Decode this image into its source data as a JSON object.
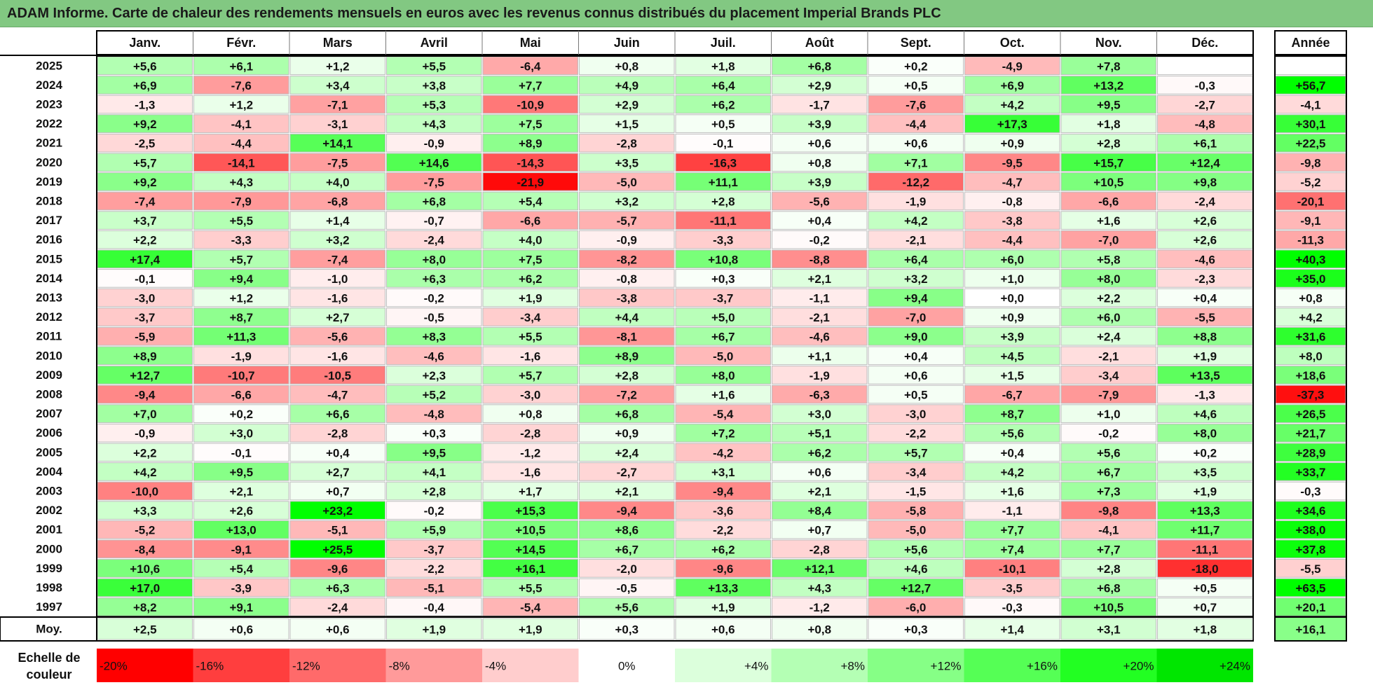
{
  "title": "ADAM Informe. Carte de chaleur des rendements mensuels en euros avec les revenus connus distribués du placement Imperial Brands PLC",
  "chart_data": {
    "type": "heatmap",
    "months": [
      "Janv.",
      "Févr.",
      "Mars",
      "Avril",
      "Mai",
      "Juin",
      "Juil.",
      "Août",
      "Sept.",
      "Oct.",
      "Nov.",
      "Déc."
    ],
    "year_header": "Année",
    "rows": [
      {
        "year": "2025",
        "values": [
          "+5,6",
          "+6,1",
          "+1,2",
          "+5,5",
          "-6,4",
          "+0,8",
          "+1,8",
          "+6,8",
          "+0,2",
          "-4,9",
          "+7,8",
          ""
        ],
        "total": ""
      },
      {
        "year": "2024",
        "values": [
          "+6,9",
          "-7,6",
          "+3,4",
          "+3,8",
          "+7,7",
          "+4,9",
          "+6,4",
          "+2,9",
          "+0,5",
          "+6,9",
          "+13,2",
          "-0,3"
        ],
        "total": "+56,7"
      },
      {
        "year": "2023",
        "values": [
          "-1,3",
          "+1,2",
          "-7,1",
          "+5,3",
          "-10,9",
          "+2,9",
          "+6,2",
          "-1,7",
          "-7,6",
          "+4,2",
          "+9,5",
          "-2,7"
        ],
        "total": "-4,1"
      },
      {
        "year": "2022",
        "values": [
          "+9,2",
          "-4,1",
          "-3,1",
          "+4,3",
          "+7,5",
          "+1,5",
          "+0,5",
          "+3,9",
          "-4,4",
          "+17,3",
          "+1,8",
          "-4,8"
        ],
        "total": "+30,1"
      },
      {
        "year": "2021",
        "values": [
          "-2,5",
          "-4,4",
          "+14,1",
          "-0,9",
          "+8,9",
          "-2,8",
          "-0,1",
          "+0,6",
          "+0,6",
          "+0,9",
          "+2,8",
          "+6,1"
        ],
        "total": "+22,5"
      },
      {
        "year": "2020",
        "values": [
          "+5,7",
          "-14,1",
          "-7,5",
          "+14,6",
          "-14,3",
          "+3,5",
          "-16,3",
          "+0,8",
          "+7,1",
          "-9,5",
          "+15,7",
          "+12,4"
        ],
        "total": "-9,8"
      },
      {
        "year": "2019",
        "values": [
          "+9,2",
          "+4,3",
          "+4,0",
          "-7,5",
          "-21,9",
          "-5,0",
          "+11,1",
          "+3,9",
          "-12,2",
          "-4,7",
          "+10,5",
          "+9,8"
        ],
        "total": "-5,2"
      },
      {
        "year": "2018",
        "values": [
          "-7,4",
          "-7,9",
          "-6,8",
          "+6,8",
          "+5,4",
          "+3,2",
          "+2,8",
          "-5,6",
          "-1,9",
          "-0,8",
          "-6,6",
          "-2,4"
        ],
        "total": "-20,1"
      },
      {
        "year": "2017",
        "values": [
          "+3,7",
          "+5,5",
          "+1,4",
          "-0,7",
          "-6,6",
          "-5,7",
          "-11,1",
          "+0,4",
          "+4,2",
          "-3,8",
          "+1,6",
          "+2,6"
        ],
        "total": "-9,1"
      },
      {
        "year": "2016",
        "values": [
          "+2,2",
          "-3,3",
          "+3,2",
          "-2,4",
          "+4,0",
          "-0,9",
          "-3,3",
          "-0,2",
          "-2,1",
          "-4,4",
          "-7,0",
          "+2,6"
        ],
        "total": "-11,3"
      },
      {
        "year": "2015",
        "values": [
          "+17,4",
          "+5,7",
          "-7,4",
          "+8,0",
          "+7,5",
          "-8,2",
          "+10,8",
          "-8,8",
          "+6,4",
          "+6,0",
          "+5,8",
          "-4,6"
        ],
        "total": "+40,3"
      },
      {
        "year": "2014",
        "values": [
          "-0,1",
          "+9,4",
          "-1,0",
          "+6,3",
          "+6,2",
          "-0,8",
          "+0,3",
          "+2,1",
          "+3,2",
          "+1,0",
          "+8,0",
          "-2,3"
        ],
        "total": "+35,0"
      },
      {
        "year": "2013",
        "values": [
          "-3,0",
          "+1,2",
          "-1,6",
          "-0,2",
          "+1,9",
          "-3,8",
          "-3,7",
          "-1,1",
          "+9,4",
          "+0,0",
          "+2,2",
          "+0,4"
        ],
        "total": "+0,8"
      },
      {
        "year": "2012",
        "values": [
          "-3,7",
          "+8,7",
          "+2,7",
          "-0,5",
          "-3,4",
          "+4,4",
          "+5,0",
          "-2,1",
          "-7,0",
          "+0,9",
          "+6,0",
          "-5,5"
        ],
        "total": "+4,2"
      },
      {
        "year": "2011",
        "values": [
          "-5,9",
          "+11,3",
          "-5,6",
          "+8,3",
          "+5,5",
          "-8,1",
          "+6,7",
          "-4,6",
          "+9,0",
          "+3,9",
          "+2,4",
          "+8,8"
        ],
        "total": "+31,6"
      },
      {
        "year": "2010",
        "values": [
          "+8,9",
          "-1,9",
          "-1,6",
          "-4,6",
          "-1,6",
          "+8,9",
          "-5,0",
          "+1,1",
          "+0,4",
          "+4,5",
          "-2,1",
          "+1,9"
        ],
        "total": "+8,0"
      },
      {
        "year": "2009",
        "values": [
          "+12,7",
          "-10,7",
          "-10,5",
          "+2,3",
          "+5,7",
          "+2,8",
          "+8,0",
          "-1,9",
          "+0,6",
          "+1,5",
          "-3,4",
          "+13,5"
        ],
        "total": "+18,6"
      },
      {
        "year": "2008",
        "values": [
          "-9,4",
          "-6,6",
          "-4,7",
          "+5,2",
          "-3,0",
          "-7,2",
          "+1,6",
          "-6,3",
          "+0,5",
          "-6,7",
          "-7,9",
          "-1,3"
        ],
        "total": "-37,3"
      },
      {
        "year": "2007",
        "values": [
          "+7,0",
          "+0,2",
          "+6,6",
          "-4,8",
          "+0,8",
          "+6,8",
          "-5,4",
          "+3,0",
          "-3,0",
          "+8,7",
          "+1,0",
          "+4,6"
        ],
        "total": "+26,5"
      },
      {
        "year": "2006",
        "values": [
          "-0,9",
          "+3,0",
          "-2,8",
          "+0,3",
          "-2,8",
          "+0,9",
          "+7,2",
          "+5,1",
          "-2,2",
          "+5,6",
          "-0,2",
          "+8,0"
        ],
        "total": "+21,7"
      },
      {
        "year": "2005",
        "values": [
          "+2,2",
          "-0,1",
          "+0,4",
          "+9,5",
          "-1,2",
          "+2,4",
          "-4,2",
          "+6,2",
          "+5,7",
          "+0,4",
          "+5,6",
          "+0,2"
        ],
        "total": "+28,9"
      },
      {
        "year": "2004",
        "values": [
          "+4,2",
          "+9,5",
          "+2,7",
          "+4,1",
          "-1,6",
          "-2,7",
          "+3,1",
          "+0,6",
          "-3,4",
          "+4,2",
          "+6,7",
          "+3,5"
        ],
        "total": "+33,7"
      },
      {
        "year": "2003",
        "values": [
          "-10,0",
          "+2,1",
          "+0,7",
          "+2,8",
          "+1,7",
          "+2,1",
          "-9,4",
          "+2,1",
          "-1,5",
          "+1,6",
          "+7,3",
          "+1,9"
        ],
        "total": "-0,3"
      },
      {
        "year": "2002",
        "values": [
          "+3,3",
          "+2,6",
          "+23,2",
          "-0,2",
          "+15,3",
          "-9,4",
          "-3,6",
          "+8,4",
          "-5,8",
          "-1,1",
          "-9,8",
          "+13,3"
        ],
        "total": "+34,6"
      },
      {
        "year": "2001",
        "values": [
          "-5,2",
          "+13,0",
          "-5,1",
          "+5,9",
          "+10,5",
          "+8,6",
          "-2,2",
          "+0,7",
          "-5,0",
          "+7,7",
          "-4,1",
          "+11,7"
        ],
        "total": "+38,0"
      },
      {
        "year": "2000",
        "values": [
          "-8,4",
          "-9,1",
          "+25,5",
          "-3,7",
          "+14,5",
          "+6,7",
          "+6,2",
          "-2,8",
          "+5,6",
          "+7,4",
          "+7,7",
          "-11,1"
        ],
        "total": "+37,8"
      },
      {
        "year": "1999",
        "values": [
          "+10,6",
          "+5,4",
          "-9,6",
          "-2,2",
          "+16,1",
          "-2,0",
          "-9,6",
          "+12,1",
          "+4,6",
          "-10,1",
          "+2,8",
          "-18,0"
        ],
        "total": "-5,5"
      },
      {
        "year": "1998",
        "values": [
          "+17,0",
          "-3,9",
          "+6,3",
          "-5,1",
          "+5,5",
          "-0,5",
          "+13,3",
          "+4,3",
          "+12,7",
          "-3,5",
          "+6,8",
          "+0,5"
        ],
        "total": "+63,5"
      },
      {
        "year": "1997",
        "values": [
          "+8,2",
          "+9,1",
          "-2,4",
          "-0,4",
          "-5,4",
          "+5,6",
          "+1,9",
          "-1,2",
          "-6,0",
          "-0,3",
          "+10,5",
          "+0,7"
        ],
        "total": "+20,1"
      }
    ],
    "average": {
      "label": "Moy.",
      "values": [
        "+2,5",
        "+0,6",
        "+0,6",
        "+1,9",
        "+1,9",
        "+0,3",
        "+0,6",
        "+0,8",
        "+0,3",
        "+1,4",
        "+3,1",
        "+1,8"
      ],
      "total": "+16,1"
    },
    "scale": {
      "title_lines": [
        "Echelle de",
        "couleur"
      ],
      "labels": [
        "-20%",
        "-16%",
        "-12%",
        "-8%",
        "-4%",
        "0%",
        "+4%",
        "+8%",
        "+12%",
        "+16%",
        "+20%",
        "+24%"
      ],
      "colors": [
        "#ff0000",
        "#ff3e3e",
        "#ff6a6a",
        "#ff9a9a",
        "#ffcdcd",
        "#ffffff",
        "#dcffdc",
        "#b4ffb4",
        "#86ff86",
        "#55ff55",
        "#22ff22",
        "#00e600"
      ]
    },
    "colors": {
      "title_bg": "#82c882",
      "neg_max": "#ff0000",
      "pos_max": "#00ff00",
      "neutral": "#ffffff"
    }
  }
}
